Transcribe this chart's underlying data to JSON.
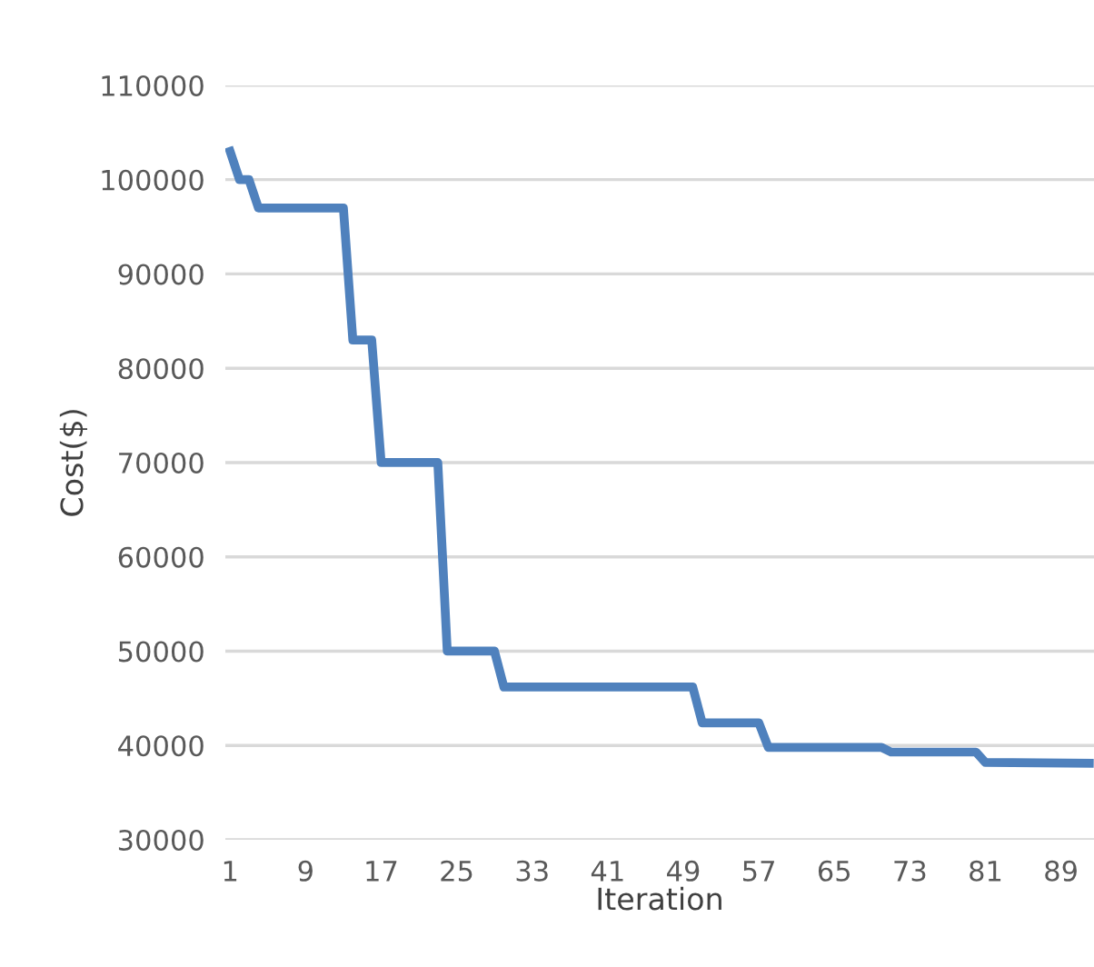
{
  "chart_data": {
    "type": "line",
    "xlabel": "Iteration",
    "ylabel": "Cost($)",
    "x": [
      1,
      2,
      3,
      4,
      13,
      14,
      16,
      17,
      23,
      24,
      29,
      30,
      50,
      51,
      57,
      58,
      70,
      71,
      80,
      81,
      92
    ],
    "series": [
      {
        "color": "#4f81bd",
        "values": [
          103000,
          100000,
          100000,
          97000,
          97000,
          83000,
          83000,
          70000,
          70000,
          50000,
          50000,
          46200,
          46200,
          42400,
          42400,
          39800,
          39800,
          39300,
          39300,
          38200,
          38100
        ]
      }
    ],
    "xlim": [
      0.5,
      92.5
    ],
    "xticks": [
      1,
      9,
      17,
      25,
      33,
      41,
      49,
      57,
      65,
      73,
      81,
      89
    ],
    "ylim": [
      30000,
      110000
    ],
    "yticks": [
      30000,
      40000,
      50000,
      60000,
      70000,
      80000,
      90000,
      100000,
      110000
    ],
    "grid": "y",
    "marker": "none",
    "line_style": "solid"
  }
}
